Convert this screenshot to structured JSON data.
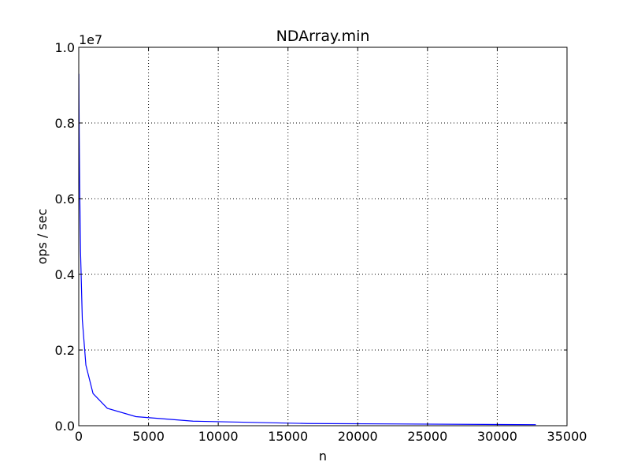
{
  "chart_data": {
    "type": "line",
    "title": "NDArray.min",
    "xlabel": "n",
    "ylabel": "ops / sec",
    "y_offset_label": "1e7",
    "xlim": [
      0,
      35000
    ],
    "ylim": [
      0,
      1.0
    ],
    "y_scale_factor": 10000000,
    "grid": true,
    "x_ticks": [
      0,
      5000,
      10000,
      15000,
      20000,
      25000,
      30000,
      35000
    ],
    "x_tick_labels": [
      "0",
      "5000",
      "10000",
      "15000",
      "20000",
      "25000",
      "30000",
      "35000"
    ],
    "y_ticks": [
      0.0,
      0.2,
      0.4,
      0.6,
      0.8,
      1.0
    ],
    "y_tick_labels": [
      "0.0",
      "0.2",
      "0.4",
      "0.6",
      "0.8",
      "1.0"
    ],
    "series": [
      {
        "color": "#0000ff",
        "x": [
          8,
          16,
          32,
          64,
          128,
          256,
          512,
          1024,
          2048,
          4096,
          8192,
          16384,
          32768
        ],
        "y": [
          0.93,
          0.87,
          0.78,
          0.64,
          0.46,
          0.28,
          0.16,
          0.085,
          0.046,
          0.024,
          0.012,
          0.0058,
          0.0027
        ]
      }
    ]
  }
}
